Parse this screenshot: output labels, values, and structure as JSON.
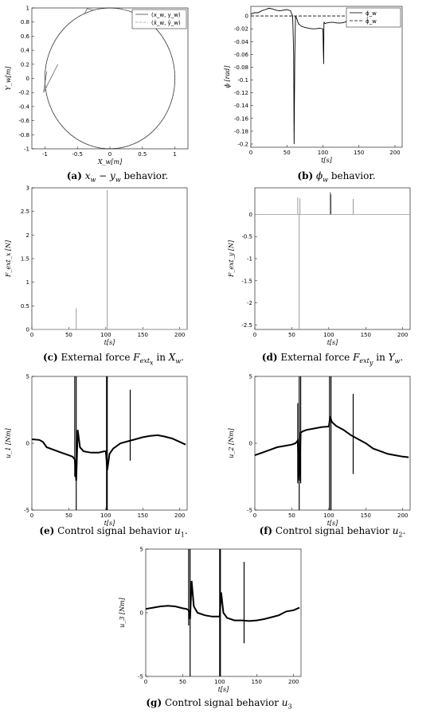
{
  "figure": {
    "captions": [
      {
        "id": "a",
        "label": "(a)",
        "math": "x",
        "math_sub": "w",
        "mid": " − ",
        "math2": "y",
        "math2_sub": "w",
        "text": " behavior."
      },
      {
        "id": "b",
        "label": "(b)",
        "math": "ϕ",
        "math_sub": "w",
        "text": " behavior."
      },
      {
        "id": "c",
        "label": "(c)",
        "pre": " External force ",
        "math": "F",
        "math_sub": "ext",
        "math_subsub": "x",
        "mid": " in ",
        "math2": "X",
        "math2_sub": "w",
        "text": "."
      },
      {
        "id": "d",
        "label": "(d)",
        "pre": " External force ",
        "math": "F",
        "math_sub": "ext",
        "math_subsub": "y",
        "mid": " in ",
        "math2": "Y",
        "math2_sub": "w",
        "text": "."
      },
      {
        "id": "e",
        "label": "(e)",
        "pre": " Control signal behavior ",
        "math": "u",
        "math_sub": "1",
        "text": "."
      },
      {
        "id": "f",
        "label": "(f)",
        "pre": " Control signal behavior ",
        "math": "u",
        "math_sub": "2",
        "text": "."
      },
      {
        "id": "g",
        "label": "(g)",
        "pre": " Control signal behavior ",
        "math": "u",
        "math_sub": "3",
        "text": ""
      }
    ]
  },
  "chart_data": [
    {
      "id": "a",
      "type": "line",
      "xlabel": "X_w[m]",
      "ylabel": "Y_w[m]",
      "xlim": [
        -1.2,
        1.2
      ],
      "ylim": [
        -1,
        1
      ],
      "xticks": [
        -1,
        -0.5,
        0,
        0.5,
        1
      ],
      "yticks": [
        -1,
        -0.8,
        -0.6,
        -0.4,
        -0.2,
        0,
        0.2,
        0.4,
        0.6,
        0.8,
        1
      ],
      "legend": {
        "placement": "top-right",
        "entries": [
          "(x_w, y_w)",
          "(x̂_w, ŷ_w)"
        ]
      },
      "series": [
        {
          "name": "(x_w, y_w)",
          "shape": "circle",
          "radius": 1.0,
          "disturbances": [
            {
              "at": [
                -0.97,
                0.1
              ],
              "spike_to": [
                -1.02,
                -0.2
              ],
              "back_to": [
                -0.8,
                0.2
              ]
            },
            {
              "at": [
                -0.39,
                0.92
              ],
              "spike_to": [
                -0.35,
                0.99
              ],
              "back_to": [
                -0.25,
                0.97
              ]
            }
          ]
        },
        {
          "name": "(x̂_w, ŷ_w)",
          "shape": "circle",
          "radius": 1.0,
          "dashed": true
        }
      ]
    },
    {
      "id": "b",
      "type": "line",
      "xlabel": "t[s]",
      "ylabel": "ϕ [rad]",
      "xlim": [
        0,
        210
      ],
      "ylim": [
        -0.205,
        0.015
      ],
      "xticks": [
        0,
        50,
        100,
        150,
        200
      ],
      "yticks": [
        0,
        -0.02,
        -0.04,
        -0.06,
        -0.08,
        -0.1,
        -0.12,
        -0.14,
        -0.16,
        -0.18,
        -0.2
      ],
      "legend": {
        "placement": "top-right",
        "entries": [
          "ϕ_w",
          "ϕ̂_w"
        ]
      },
      "series": [
        {
          "name": "ϕ_w",
          "x": [
            0,
            5,
            10,
            15,
            20,
            25,
            30,
            35,
            40,
            45,
            50,
            55,
            58,
            59.5,
            60,
            61,
            62,
            64,
            66,
            70,
            75,
            80,
            85,
            90,
            95,
            100,
            101,
            101.5,
            102,
            103,
            105,
            110,
            115,
            120,
            125,
            130,
            135,
            140,
            145,
            150,
            155,
            160,
            165,
            170,
            175,
            180,
            185,
            190,
            195
          ],
          "y": [
            0.003,
            0.005,
            0.005,
            0.008,
            0.01,
            0.012,
            0.011,
            0.009,
            0.008,
            0.009,
            0.01,
            0.008,
            0.0,
            -0.06,
            -0.2,
            -0.06,
            0.0,
            -0.005,
            -0.012,
            -0.016,
            -0.018,
            -0.019,
            -0.02,
            -0.02,
            -0.019,
            -0.02,
            -0.075,
            -0.01,
            -0.01,
            -0.012,
            -0.011,
            -0.01,
            -0.01,
            -0.011,
            -0.011,
            -0.01,
            -0.007,
            -0.006,
            -0.005,
            -0.008,
            -0.01,
            -0.01,
            0.0,
            0.005,
            0.006,
            0.008,
            0.009,
            0.01,
            0.01
          ]
        },
        {
          "name": "ϕ̂_w",
          "x": [
            0,
            200
          ],
          "y": [
            0,
            0
          ],
          "dashed": true
        }
      ]
    },
    {
      "id": "c",
      "type": "line",
      "xlabel": "t[s]",
      "ylabel": "F_ext_x [N]",
      "xlim": [
        0,
        210
      ],
      "ylim": [
        0,
        3
      ],
      "xticks": [
        0,
        50,
        100,
        150,
        200
      ],
      "yticks": [
        0,
        0.5,
        1,
        1.5,
        2,
        2.5,
        3
      ],
      "impulses": [
        {
          "x": 60,
          "y": 0.45,
          "color": "#999999"
        },
        {
          "x": 102,
          "y": 2.95,
          "color": "#999999"
        }
      ]
    },
    {
      "id": "d",
      "type": "line",
      "xlabel": "t[s]",
      "ylabel": "F_ext_y [N]",
      "xlim": [
        0,
        210
      ],
      "ylim": [
        -2.6,
        0.6
      ],
      "xticks": [
        0,
        50,
        100,
        150,
        200
      ],
      "yticks": [
        0,
        -0.5,
        -1,
        -1.5,
        -2,
        -2.5
      ],
      "impulses": [
        {
          "x": 58,
          "y": 0.38,
          "color": "#999999"
        },
        {
          "x": 60,
          "y": -2.6,
          "color": "#999999"
        },
        {
          "x": 61,
          "y": 0.36,
          "color": "#999999"
        },
        {
          "x": 102,
          "y": 0.5,
          "color": "#555555"
        },
        {
          "x": 103,
          "y": 0.45,
          "color": "#555555"
        },
        {
          "x": 133,
          "y": 0.35,
          "color": "#999999"
        }
      ]
    },
    {
      "id": "e",
      "type": "line",
      "xlabel": "t[s]",
      "ylabel": "u_1 [Nm]",
      "xlim": [
        0,
        210
      ],
      "ylim": [
        -5,
        5
      ],
      "xticks": [
        0,
        50,
        100,
        150,
        200
      ],
      "yticks": [
        -5,
        0,
        5
      ],
      "series": [
        {
          "name": "u_1",
          "x": [
            0,
            10,
            15,
            20,
            30,
            40,
            50,
            55,
            58,
            60,
            62,
            65,
            70,
            80,
            90,
            98,
            100,
            102,
            105,
            110,
            120,
            130,
            140,
            150,
            160,
            170,
            180,
            190,
            200,
            208
          ],
          "y": [
            0.3,
            0.25,
            0.1,
            -0.3,
            -0.5,
            -0.7,
            -0.9,
            -1.0,
            -1.2,
            -2.8,
            1.0,
            -0.3,
            -0.6,
            -0.7,
            -0.7,
            -0.6,
            -0.6,
            -2.0,
            -0.8,
            -0.4,
            0.0,
            0.15,
            0.3,
            0.45,
            0.55,
            0.6,
            0.5,
            0.35,
            0.1,
            -0.1
          ]
        }
      ],
      "spikes": [
        {
          "x": 58,
          "ymin": -2.5,
          "ymax": 5
        },
        {
          "x": 60,
          "ymin": -5,
          "ymax": 5
        },
        {
          "x": 101,
          "ymin": -5,
          "ymax": 5
        },
        {
          "x": 102,
          "ymin": -5,
          "ymax": 5
        },
        {
          "x": 133,
          "ymin": -1.3,
          "ymax": 4
        }
      ]
    },
    {
      "id": "f",
      "type": "line",
      "xlabel": "t[s]",
      "ylabel": "u_2 [Nm]",
      "xlim": [
        0,
        210
      ],
      "ylim": [
        -5,
        5
      ],
      "xticks": [
        0,
        50,
        100,
        150,
        200
      ],
      "yticks": [
        -5,
        0,
        5
      ],
      "series": [
        {
          "name": "u_2",
          "x": [
            0,
            10,
            20,
            30,
            40,
            50,
            55,
            58,
            60,
            62,
            65,
            70,
            80,
            90,
            100,
            102,
            104,
            106,
            110,
            120,
            130,
            140,
            150,
            160,
            170,
            180,
            190,
            200,
            208
          ],
          "y": [
            -0.9,
            -0.7,
            -0.5,
            -0.3,
            -0.2,
            -0.1,
            0.0,
            0.2,
            -2.8,
            0.8,
            0.9,
            1.0,
            1.1,
            1.2,
            1.25,
            2.0,
            1.6,
            1.5,
            1.3,
            1.0,
            0.6,
            0.3,
            0.0,
            -0.4,
            -0.6,
            -0.8,
            -0.9,
            -1.0,
            -1.05
          ]
        }
      ],
      "spikes": [
        {
          "x": 58,
          "ymin": -3,
          "ymax": 3
        },
        {
          "x": 60,
          "ymin": -5,
          "ymax": 5
        },
        {
          "x": 62,
          "ymin": -3,
          "ymax": 5
        },
        {
          "x": 101,
          "ymin": -5,
          "ymax": 5
        },
        {
          "x": 103,
          "ymin": -5,
          "ymax": 5
        },
        {
          "x": 133,
          "ymin": -2.3,
          "ymax": 3.7
        }
      ]
    },
    {
      "id": "g",
      "type": "line",
      "xlabel": "t[s]",
      "ylabel": "u_3 [Nm]",
      "xlim": [
        0,
        210
      ],
      "ylim": [
        -5,
        5
      ],
      "xticks": [
        0,
        50,
        100,
        150,
        200
      ],
      "yticks": [
        -5,
        0,
        5
      ],
      "series": [
        {
          "name": "u_3",
          "x": [
            0,
            10,
            20,
            30,
            40,
            50,
            55,
            58,
            60,
            62,
            65,
            70,
            80,
            90,
            100,
            102,
            105,
            110,
            120,
            130,
            140,
            150,
            160,
            170,
            180,
            190,
            200,
            208
          ],
          "y": [
            0.3,
            0.4,
            0.5,
            0.55,
            0.5,
            0.35,
            0.3,
            0.2,
            -0.5,
            2.5,
            0.5,
            0.0,
            -0.2,
            -0.3,
            -0.3,
            1.6,
            0.0,
            -0.4,
            -0.6,
            -0.6,
            -0.65,
            -0.6,
            -0.5,
            -0.35,
            -0.2,
            0.1,
            0.2,
            0.4
          ]
        }
      ],
      "spikes": [
        {
          "x": 58,
          "ymin": -1,
          "ymax": 5
        },
        {
          "x": 60,
          "ymin": -5,
          "ymax": 5
        },
        {
          "x": 100,
          "ymin": -5,
          "ymax": 5
        },
        {
          "x": 101,
          "ymin": -5,
          "ymax": 5
        },
        {
          "x": 133,
          "ymin": -2.4,
          "ymax": 4
        }
      ]
    }
  ]
}
